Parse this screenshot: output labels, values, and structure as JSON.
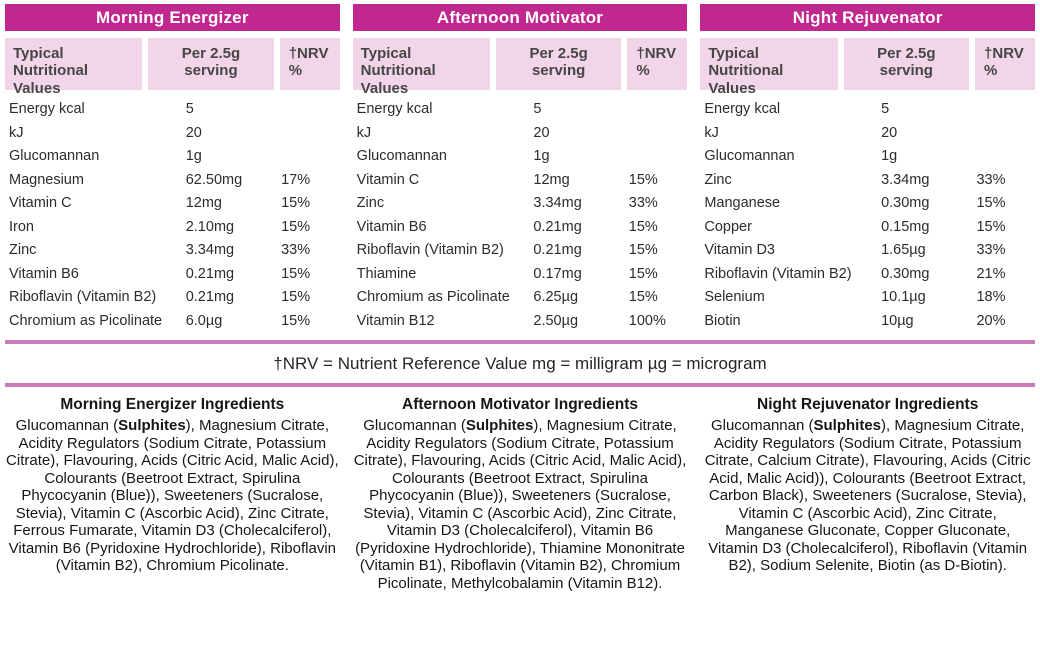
{
  "colors": {
    "header_bg": "#c0278f",
    "subheader_bg": "#f2d5e8",
    "divider": "#ca79bd"
  },
  "columns": [
    "Typical Nutritional Values",
    "Per 2.5g serving",
    "†NRV %"
  ],
  "note": "†NRV = Nutrient Reference Value mg = milligram µg = microgram",
  "tables": [
    {
      "title": "Morning Energizer",
      "rows": [
        [
          "Energy kcal",
          "5",
          ""
        ],
        [
          "kJ",
          "20",
          ""
        ],
        [
          "Glucomannan",
          "1g",
          ""
        ],
        [
          "Magnesium",
          "62.50mg",
          "17%"
        ],
        [
          "Vitamin C",
          "12mg",
          "15%"
        ],
        [
          "Iron",
          "2.10mg",
          "15%"
        ],
        [
          "Zinc",
          "3.34mg",
          "33%"
        ],
        [
          "Vitamin B6",
          "0.21mg",
          "15%"
        ],
        [
          "Riboflavin (Vitamin B2)",
          "0.21mg",
          "15%"
        ],
        [
          "Chromium as Picolinate",
          "6.0µg",
          "15%"
        ]
      ],
      "ingredients": {
        "title": "Morning Energizer Ingredients",
        "prefix": "Glucomannan (",
        "allergen": "Sulphites",
        "rest": "), Magnesium Citrate, Acidity Regulators (Sodium Citrate, Potassium Citrate), Flavouring, Acids (Citric Acid, Malic Acid), Colourants (Beetroot Extract, Spirulina Phycocyanin (Blue)), Sweeteners (Sucralose, Stevia), Vitamin C (Ascorbic Acid), Zinc Citrate, Ferrous Fumarate, Vitamin D3 (Cholecalciferol), Vitamin B6 (Pyridoxine Hydrochloride), Riboflavin (Vitamin B2), Chromium Picolinate."
      }
    },
    {
      "title": "Afternoon Motivator",
      "rows": [
        [
          "Energy kcal",
          "5",
          ""
        ],
        [
          "kJ",
          "20",
          ""
        ],
        [
          "Glucomannan",
          "1g",
          ""
        ],
        [
          "Vitamin C",
          "12mg",
          "15%"
        ],
        [
          "Zinc",
          "3.34mg",
          "33%"
        ],
        [
          "Vitamin B6",
          "0.21mg",
          "15%"
        ],
        [
          "Riboflavin (Vitamin B2)",
          "0.21mg",
          "15%"
        ],
        [
          "Thiamine",
          "0.17mg",
          "15%"
        ],
        [
          "Chromium as Picolinate",
          "6.25µg",
          "15%"
        ],
        [
          "Vitamin B12",
          "2.50µg",
          "100%"
        ]
      ],
      "ingredients": {
        "title": "Afternoon Motivator Ingredients",
        "prefix": "Glucomannan (",
        "allergen": "Sulphites",
        "rest": "), Magnesium Citrate, Acidity Regulators (Sodium Citrate, Potassium Citrate), Flavouring, Acids (Citric Acid, Malic Acid), Colourants (Beetroot Extract, Spirulina Phycocyanin (Blue)), Sweeteners (Sucralose, Stevia), Vitamin C (Ascorbic Acid), Zinc Citrate, Vitamin D3 (Cholecalciferol), Vitamin B6 (Pyridoxine Hydrochloride), Thiamine Mononitrate (Vitamin B1), Riboflavin (Vitamin B2), Chromium Picolinate, Methylcobalamin (Vitamin B12)."
      }
    },
    {
      "title": "Night Rejuvenator",
      "rows": [
        [
          "Energy kcal",
          "5",
          ""
        ],
        [
          "kJ",
          "20",
          ""
        ],
        [
          "Glucomannan",
          "1g",
          ""
        ],
        [
          "Zinc",
          "3.34mg",
          "33%"
        ],
        [
          "Manganese",
          "0.30mg",
          "15%"
        ],
        [
          "Copper",
          "0.15mg",
          "15%"
        ],
        [
          "Vitamin D3",
          "1.65µg",
          "33%"
        ],
        [
          "Riboflavin (Vitamin B2)",
          "0.30mg",
          "21%"
        ],
        [
          "Selenium",
          "10.1µg",
          "18%"
        ],
        [
          "Biotin",
          "10µg",
          "20%"
        ]
      ],
      "ingredients": {
        "title": "Night Rejuvenator Ingredients",
        "prefix": "Glucomannan (",
        "allergen": "Sulphites",
        "rest": "), Magnesium Citrate, Acidity Regulators (Sodium Citrate, Potassium Citrate, Calcium Citrate), Flavouring, Acids (Citric Acid, Malic Acid)), Colourants (Beetroot Extract, Carbon Black), Sweeteners (Sucralose, Stevia), Vitamin C (Ascorbic Acid), Zinc Citrate, Manganese Gluconate, Copper Gluconate, Vitamin D3 (Cholecalciferol), Riboflavin (Vitamin B2), Sodium Selenite, Biotin (as D-Biotin)."
      }
    }
  ]
}
